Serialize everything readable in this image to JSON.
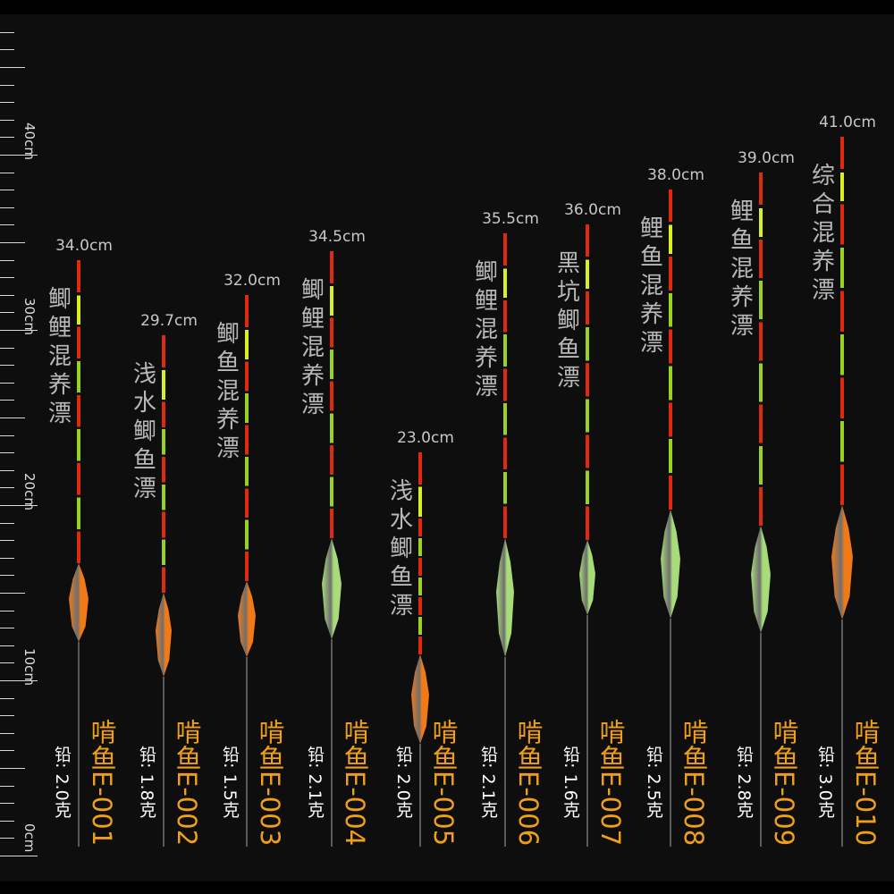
{
  "ruler": {
    "labels": [
      "40cm",
      "30cm",
      "20cm",
      "10cm",
      "0cm"
    ],
    "values": [
      40,
      30,
      20,
      10,
      0
    ],
    "max_cm": 41
  },
  "colors": {
    "orange": "#f07a18",
    "green": "#a8dc78",
    "stem_red": "#e02a10",
    "stem_green": "#9ad020",
    "tip_yellow": "#d8f020"
  },
  "floats": [
    {
      "length_cm": 34.0,
      "length_label": "34.0cm",
      "name": "鲫鲤混养漂",
      "weight": "铅: 2.0克",
      "model": "啃鱼E-001",
      "body": "orange"
    },
    {
      "length_cm": 29.7,
      "length_label": "29.7cm",
      "name": "浅水鲫鱼漂",
      "weight": "铅: 1.8克",
      "model": "啃鱼E-002",
      "body": "orange"
    },
    {
      "length_cm": 32.0,
      "length_label": "32.0cm",
      "name": "鲫鱼混养漂",
      "weight": "铅: 1.5克",
      "model": "啃鱼E-003",
      "body": "orange"
    },
    {
      "length_cm": 34.5,
      "length_label": "34.5cm",
      "name": "鲫鲤混养漂",
      "weight": "铅: 2.1克",
      "model": "啃鱼E-004",
      "body": "green"
    },
    {
      "length_cm": 23.0,
      "length_label": "23.0cm",
      "name": "浅水鲫鱼漂",
      "weight": "铅: 2.0克",
      "model": "啃鱼E-005",
      "body": "orange"
    },
    {
      "length_cm": 35.5,
      "length_label": "35.5cm",
      "name": "鲫鲤混养漂",
      "weight": "铅: 2.1克",
      "model": "啃鱼E-006",
      "body": "green"
    },
    {
      "length_cm": 36.0,
      "length_label": "36.0cm",
      "name": "黑坑鲫鱼漂",
      "weight": "铅: 1.6克",
      "model": "啃鱼E-007",
      "body": "green"
    },
    {
      "length_cm": 38.0,
      "length_label": "38.0cm",
      "name": "鲤鱼混养漂",
      "weight": "铅: 2.5克",
      "model": "啃鱼E-008",
      "body": "green"
    },
    {
      "length_cm": 39.0,
      "length_label": "39.0cm",
      "name": "鲤鱼混养漂",
      "weight": "铅: 2.8克",
      "model": "啃鱼E-009",
      "body": "green"
    },
    {
      "length_cm": 41.0,
      "length_label": "41.0cm",
      "name": "综合混养漂",
      "weight": "铅: 3.0克",
      "model": "啃鱼E-010",
      "body": "orange"
    }
  ]
}
